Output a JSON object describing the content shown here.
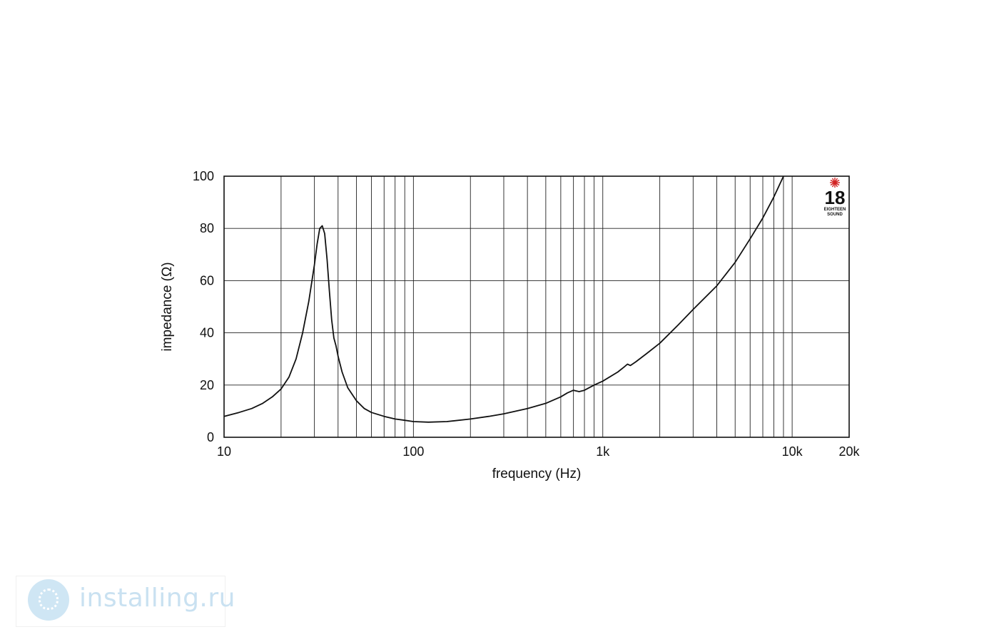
{
  "chart_data": {
    "type": "line",
    "xlabel": "frequency (Hz)",
    "ylabel": "impedance (Ω)",
    "x_scale": "log",
    "xlim": [
      10,
      20000
    ],
    "ylim": [
      0,
      100
    ],
    "grid": true,
    "x_tick_labels": [
      {
        "value": 10,
        "label": "10"
      },
      {
        "value": 100,
        "label": "100"
      },
      {
        "value": 1000,
        "label": "1k"
      },
      {
        "value": 10000,
        "label": "10k"
      },
      {
        "value": 20000,
        "label": "20k"
      }
    ],
    "y_ticks": [
      0,
      20,
      40,
      60,
      80,
      100
    ],
    "line_color": "#111111",
    "series": [
      {
        "x": [
          10,
          12,
          14,
          16,
          18,
          20,
          22,
          24,
          26,
          28,
          30,
          31,
          32,
          33,
          34,
          35,
          36,
          37,
          38,
          39,
          40,
          42,
          45,
          50,
          55,
          60,
          70,
          80,
          90,
          100,
          120,
          150,
          200,
          250,
          300,
          400,
          500,
          600,
          650,
          700,
          750,
          800,
          900,
          1000,
          1200,
          1300,
          1350,
          1400,
          1500,
          1700,
          2000,
          2500,
          3000,
          4000,
          5000,
          6000,
          7000,
          8000,
          9000
        ],
        "y": [
          8,
          9.5,
          11,
          13,
          15.5,
          18.5,
          23,
          30,
          40,
          52,
          66,
          74,
          80,
          81,
          78,
          68,
          56,
          45,
          38,
          35,
          31,
          25,
          19,
          14,
          11,
          9.5,
          8,
          7,
          6.5,
          6,
          5.8,
          6,
          7,
          8,
          9,
          11,
          13,
          15.5,
          17,
          18,
          17.5,
          18,
          20,
          21.5,
          25,
          27,
          28,
          27.5,
          29,
          32,
          36,
          43,
          49,
          58,
          67,
          76,
          84,
          92,
          100
        ]
      }
    ]
  },
  "logo": {
    "number": "18",
    "line1": "EIGHTEEN",
    "line2": "SOUND",
    "star_color": "#d22222"
  },
  "watermark": {
    "text": "installing.ru",
    "color": "#c9e1f1",
    "icon_color": "#cfe6f4"
  }
}
